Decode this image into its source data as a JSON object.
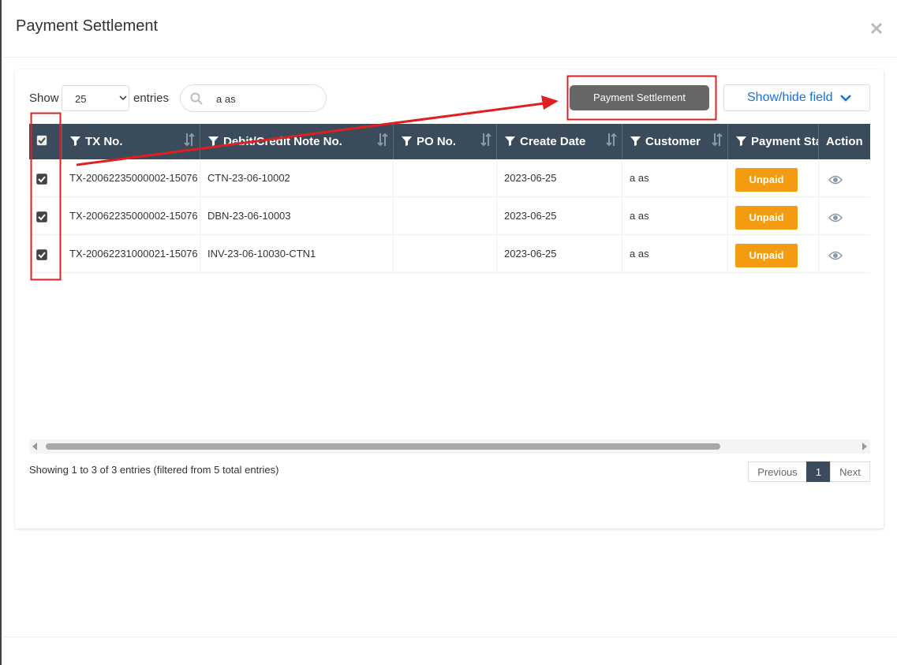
{
  "header": {
    "title": "Payment Settlement"
  },
  "toolbar": {
    "show_label": "Show",
    "page_length": 25,
    "entries_label": "entries",
    "search_value": "a as",
    "settle_button": "Payment Settlement",
    "fields_button": "Show/hide field"
  },
  "table": {
    "columns": [
      "TX No.",
      "Debit/Credit Note No.",
      "PO No.",
      "Create Date",
      "Customer",
      "Payment Sta",
      "Action"
    ],
    "rows": [
      {
        "tx_no": "TX-20062235000002-15076",
        "note_no": "CTN-23-06-10002",
        "create_date": "2023-06-25",
        "customer": "a as",
        "status": "Unpaid"
      },
      {
        "tx_no": "TX-20062235000002-15076",
        "note_no": "DBN-23-06-10003",
        "create_date": "2023-06-25",
        "customer": "a as",
        "status": "Unpaid"
      },
      {
        "tx_no": "TX-20062231000021-15076",
        "note_no": "INV-23-06-10030-CTN1",
        "create_date": "2023-06-25",
        "customer": "a as",
        "status": "Unpaid"
      }
    ]
  },
  "footer": {
    "info": "Showing 1 to 3 of 3 entries (filtered from 5 total entries)",
    "pagination": {
      "previous": "Previous",
      "current": 1,
      "next": "Next"
    }
  }
}
